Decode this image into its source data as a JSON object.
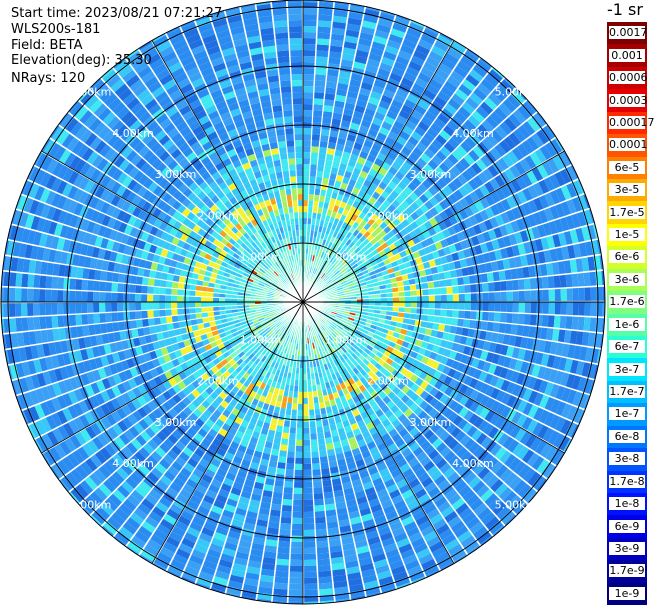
{
  "header": {
    "start_time": "Start time: 2023/08/21 07:21:27",
    "instrument": "WLS200s-181",
    "field": "Field: BETA",
    "elevation": "Elevation(deg): 35.30",
    "nrays": "NRays: 120"
  },
  "colorbar": {
    "unit": "-1 sr",
    "labels": [
      "0.0017",
      "0.001",
      "0.0006",
      "0.0003",
      "0.00017",
      "0.0001",
      "6e-5",
      "3e-5",
      "1.7e-5",
      "1e-5",
      "6e-6",
      "3e-6",
      "1.7e-6",
      "1e-6",
      "6e-7",
      "3e-7",
      "1.7e-7",
      "1e-7",
      "6e-8",
      "3e-8",
      "1.7e-8",
      "1e-8",
      "6e-9",
      "3e-9",
      "1.7e-9",
      "1e-9"
    ],
    "colors": [
      "#7f0000",
      "#a50000",
      "#cc0000",
      "#e60000",
      "#ff2a00",
      "#ff5500",
      "#ff7f00",
      "#ffaa00",
      "#ffd400",
      "#ffff00",
      "#d4ff2a",
      "#aaff55",
      "#7fff7f",
      "#55ffaa",
      "#2affd4",
      "#00e5ff",
      "#00bfff",
      "#0099ff",
      "#0077ff",
      "#0055ff",
      "#0033ff",
      "#0011ff",
      "#0000e6",
      "#0000c0",
      "#00009a",
      "#00007f"
    ]
  },
  "chart_data": {
    "type": "heatmap",
    "title": "",
    "projection": "polar (PPI scan)",
    "nrays": 120,
    "elevation_deg": 35.3,
    "field": "BETA",
    "range_ring_labels": [
      "1.00km",
      "2.00km",
      "3.00km",
      "4.00km",
      "5.00km"
    ],
    "range_rings_km": [
      1,
      2,
      3,
      4,
      5
    ],
    "max_range_km": 5.0,
    "colorscale": "log10 backscatter, 1e-9 to 0.0017 sr^-1",
    "dominant_value_by_range_km": [
      {
        "range": [
          0.0,
          1.0
        ],
        "value": "3e-7"
      },
      {
        "range": [
          1.0,
          1.5
        ],
        "value": "1.7e-7"
      },
      {
        "range": [
          1.5,
          1.75
        ],
        "value": "3e-6"
      },
      {
        "range": [
          1.75,
          2.5
        ],
        "value": "1.7e-7"
      },
      {
        "range": [
          2.5,
          5.2
        ],
        "value": "3e-8"
      }
    ]
  }
}
